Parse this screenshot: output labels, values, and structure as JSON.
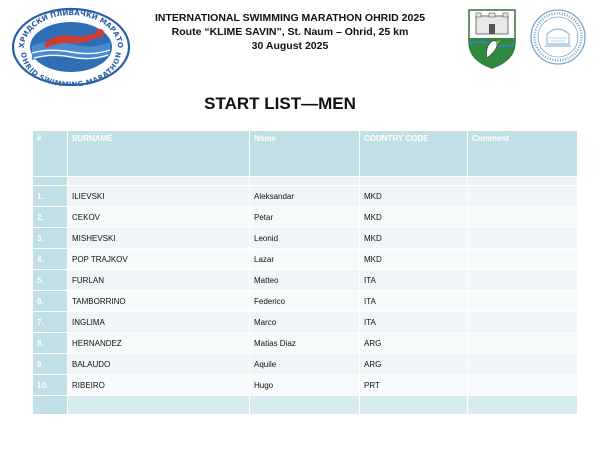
{
  "header": {
    "logo_name": "ohrid-swimming-marathon-logo",
    "logo_top_text": "ОХРИДСКИ ПЛИВАЧКИ МАРАТОН",
    "logo_bottom_text": "OHRID SWIMMING MARATHON",
    "title_line1": "INTERNATIONAL SWIMMING MARATHON OHRID 2025",
    "title_line2": "Route “KLIME SAVIN”, St. Naum – Ohrid, 25 km",
    "title_line3": "30 August 2025",
    "crest_name": "ohrid-city-crest",
    "seal_name": "round-organisation-seal"
  },
  "title": "START LIST—MEN",
  "table": {
    "columns": [
      "#",
      "SURNAME",
      "Name",
      "COUNTRY CODE",
      "Comment"
    ],
    "rows": [
      {
        "num": "1.",
        "surname": "ILIEVSKI",
        "name": "Aleksandar",
        "country": "MKD",
        "comment": ""
      },
      {
        "num": "2.",
        "surname": "CEKOV",
        "name": "Petar",
        "country": "MKD",
        "comment": ""
      },
      {
        "num": "3.",
        "surname": "MISHEVSKI",
        "name": "Leonid",
        "country": "MKD",
        "comment": ""
      },
      {
        "num": "4.",
        "surname": "POP TRAJKOV",
        "name": "Lazar",
        "country": "MKD",
        "comment": ""
      },
      {
        "num": "5.",
        "surname": "FURLAN",
        "name": "Matteo",
        "country": "ITA",
        "comment": ""
      },
      {
        "num": "6.",
        "surname": "TAMBORRINO",
        "name": "Federico",
        "country": "ITA",
        "comment": ""
      },
      {
        "num": "7.",
        "surname": "INGLIMA",
        "name": "Marco",
        "country": "ITA",
        "comment": ""
      },
      {
        "num": "8.",
        "surname": "HERNANDEZ",
        "name": "Matias Diaz",
        "country": "ARG",
        "comment": ""
      },
      {
        "num": "9.",
        "surname": "BALAUDO",
        "name": "Aquile",
        "country": "ARG",
        "comment": ""
      },
      {
        "num": "10.",
        "surname": "RIBEIRO",
        "name": "Hugo",
        "country": "PRT",
        "comment": ""
      }
    ]
  },
  "colors": {
    "header_fill": "#c0e0e6",
    "row_light": "#f7fafb",
    "row_alt": "#f0f6f7",
    "logo_blue": "#2a5fa8",
    "logo_red": "#d53a2f"
  }
}
